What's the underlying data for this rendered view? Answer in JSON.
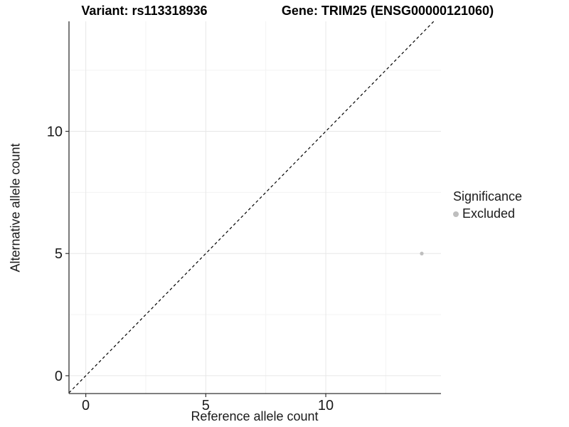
{
  "chart_data": {
    "type": "scatter",
    "title_left": "Variant: rs113318936",
    "title_right": "Gene: TRIM25 (ENSG00000121060)",
    "xlabel": "Reference allele count",
    "ylabel": "Alternative allele count",
    "x_ticks": [
      0,
      5,
      10
    ],
    "y_ticks": [
      0,
      5,
      10
    ],
    "x_minor": [
      2.5,
      7.5,
      12.5
    ],
    "y_minor": [
      2.5,
      7.5,
      12.5
    ],
    "xlim": [
      -0.7,
      14.8
    ],
    "ylim": [
      -0.73,
      14.5
    ],
    "grid": true,
    "identity_line": {
      "style": "dashed",
      "color": "#000000",
      "meaning": "y = x"
    },
    "points": [
      {
        "x": 14,
        "y": 5,
        "significance": "Excluded",
        "color": "#bebebe"
      }
    ],
    "legend": {
      "title": "Significance",
      "position": "right",
      "items": [
        {
          "label": "Excluded",
          "color": "#bebebe",
          "marker": "circle"
        }
      ]
    },
    "colors": {
      "grid_major": "#e7e7e7",
      "grid_minor": "#f3f3f3",
      "axis": "#333333",
      "text": "#1a1a1a"
    }
  }
}
